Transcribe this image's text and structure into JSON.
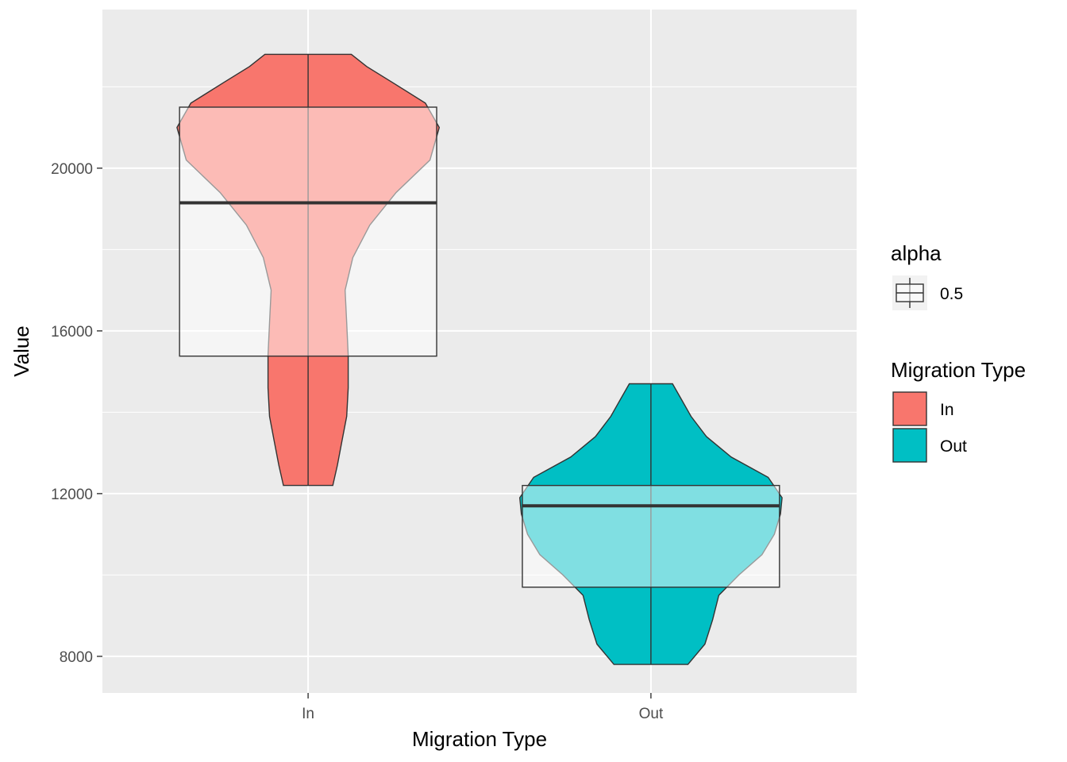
{
  "chart_data": {
    "type": "violin",
    "xlabel": "Migration Type",
    "ylabel": "Value",
    "categories": [
      "In",
      "Out"
    ],
    "ylim": [
      7100,
      23900
    ],
    "yticks": [
      8000,
      12000,
      16000,
      20000
    ],
    "grid": true,
    "series": [
      {
        "name": "In",
        "color": "#F8766D",
        "min": 12200,
        "max": 22800,
        "box": {
          "q1": 15380,
          "median": 19150,
          "q3": 21500
        },
        "density": [
          [
            12200,
            0.16
          ],
          [
            12700,
            0.19
          ],
          [
            13300,
            0.22
          ],
          [
            13900,
            0.25
          ],
          [
            14600,
            0.26
          ],
          [
            15400,
            0.26
          ],
          [
            16200,
            0.25
          ],
          [
            17000,
            0.24
          ],
          [
            17800,
            0.29
          ],
          [
            18600,
            0.4
          ],
          [
            19400,
            0.57
          ],
          [
            20200,
            0.79
          ],
          [
            21000,
            0.85
          ],
          [
            21600,
            0.76
          ],
          [
            22100,
            0.55
          ],
          [
            22500,
            0.38
          ],
          [
            22800,
            0.28
          ]
        ]
      },
      {
        "name": "Out",
        "color": "#00BFC4",
        "min": 7800,
        "max": 14700,
        "box": {
          "q1": 9700,
          "median": 11700,
          "q3": 12200
        },
        "density": [
          [
            7800,
            0.24
          ],
          [
            8300,
            0.35
          ],
          [
            8900,
            0.4
          ],
          [
            9500,
            0.44
          ],
          [
            10000,
            0.57
          ],
          [
            10500,
            0.72
          ],
          [
            11000,
            0.8
          ],
          [
            11500,
            0.84
          ],
          [
            11900,
            0.85
          ],
          [
            12400,
            0.76
          ],
          [
            12900,
            0.52
          ],
          [
            13400,
            0.36
          ],
          [
            13900,
            0.26
          ],
          [
            14300,
            0.2
          ],
          [
            14700,
            0.14
          ]
        ]
      }
    ],
    "legend": {
      "position": "right",
      "alpha": {
        "title": "alpha",
        "label": "0.5"
      },
      "fill": {
        "title": "Migration Type",
        "items": [
          "In",
          "Out"
        ]
      }
    }
  }
}
